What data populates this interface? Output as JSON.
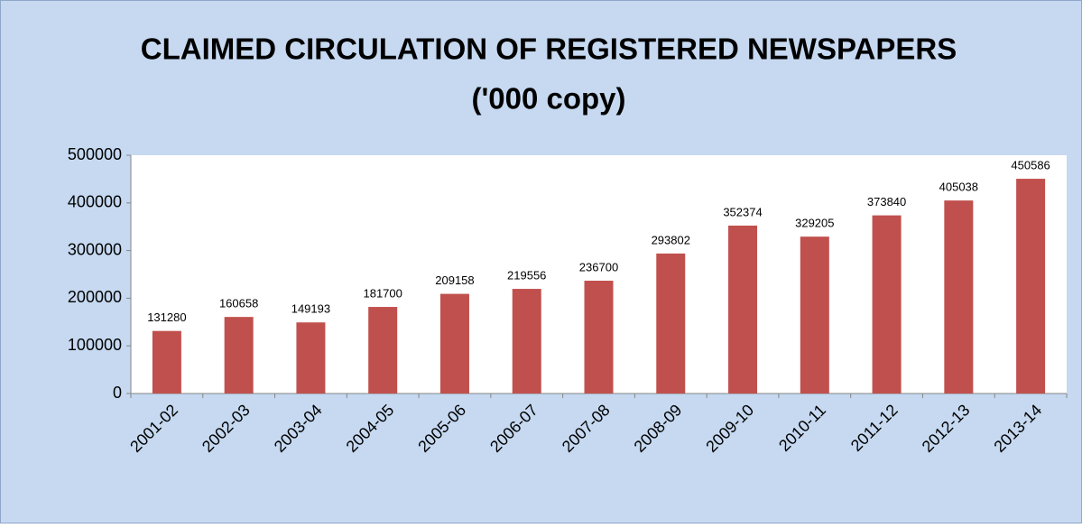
{
  "chart_data": {
    "type": "bar",
    "title": [
      "CLAIMED CIRCULATION OF REGISTERED NEWSPAPERS",
      "('000 copy)"
    ],
    "categories": [
      "2001-02",
      "2002-03",
      "2003-04",
      "2004-05",
      "2005-06",
      "2006-07",
      "2007-08",
      "2008-09",
      "2009-10",
      "2010-11",
      "2011-12",
      "2012-13",
      "2013-14"
    ],
    "values": [
      131280,
      160658,
      149193,
      181700,
      209158,
      219556,
      236700,
      293802,
      352374,
      329205,
      373840,
      405038,
      450586
    ],
    "color": "#c0504d",
    "ylim": [
      0,
      500000
    ],
    "yticks": [
      0,
      100000,
      200000,
      300000,
      400000,
      500000
    ],
    "grid": false
  }
}
